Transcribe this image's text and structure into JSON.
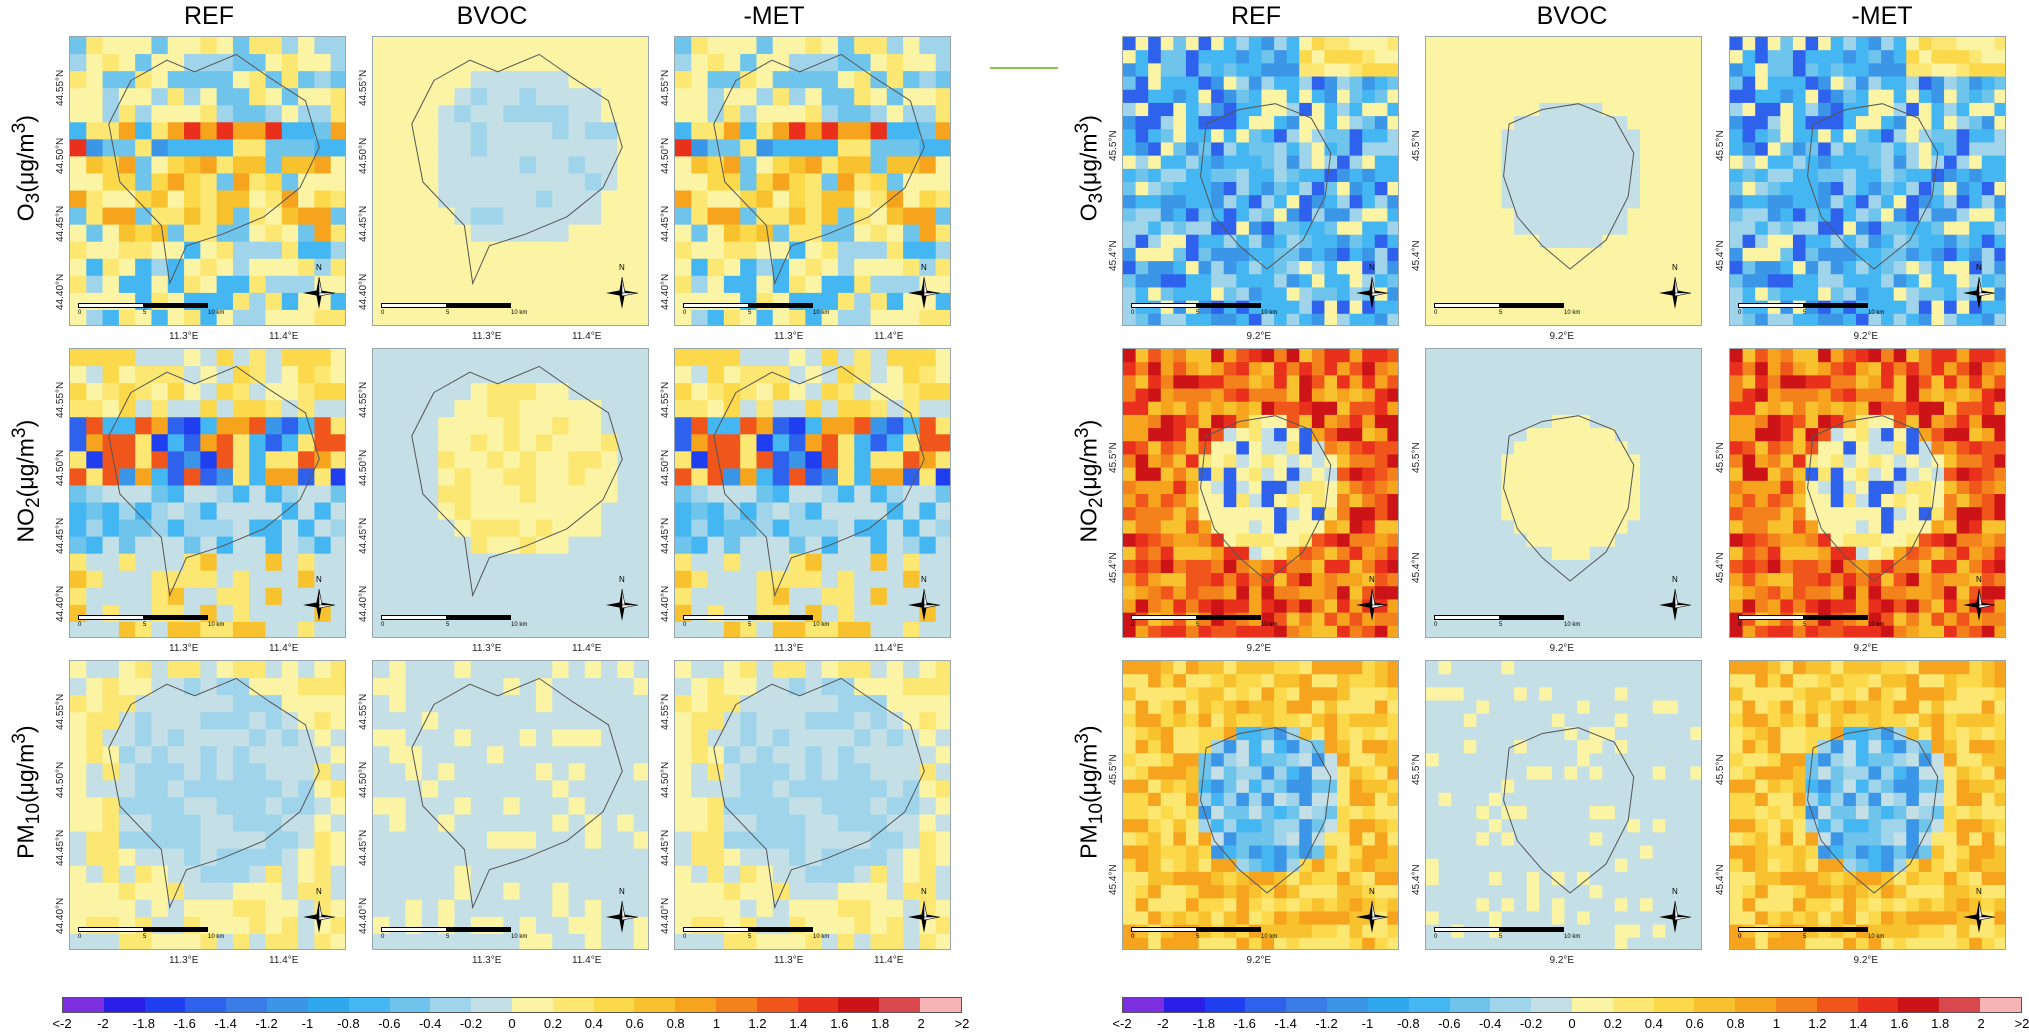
{
  "figure": {
    "left_panel": {
      "column_headers": [
        "REF",
        "BVOC",
        "-MET"
      ],
      "x_ticks": [
        "11.3°E",
        "11.4°E"
      ],
      "y_ticks": [
        "44.55°N",
        "44.50°N",
        "44.45°N",
        "44.40°N"
      ]
    },
    "right_panel": {
      "column_headers": [
        "REF",
        "BVOC",
        "-MET"
      ],
      "x_ticks": [
        "9.2°E"
      ],
      "y_ticks": [
        "45.5°N",
        "45.4°N"
      ]
    },
    "row_labels": [
      {
        "main": "O",
        "sub": "3",
        "rest": "(μg/m",
        "sup": "3",
        "end": ")"
      },
      {
        "main": "NO",
        "sub": "2",
        "rest": "(μg/m",
        "sup": "3",
        "end": ")"
      },
      {
        "main": "PM",
        "sub": "10",
        "rest": "(μg/m",
        "sup": "3",
        "end": ")"
      }
    ],
    "scale_labels": [
      "0",
      "5",
      "10 km"
    ],
    "north_label": "N",
    "legend": {
      "ticks": [
        "<-2",
        "-2",
        "-1.8",
        "-1.6",
        "-1.4",
        "-1.2",
        "-1",
        "-0.8",
        "-0.6",
        "-0.4",
        "-0.2",
        "0",
        "0.2",
        "0.4",
        "0.6",
        "0.8",
        "1",
        "1.2",
        "1.4",
        "1.6",
        "1.8",
        "2",
        ">2"
      ],
      "colors": [
        "#7b2fe0",
        "#2a1fe8",
        "#1f3ef0",
        "#2f62ec",
        "#3a7de6",
        "#3c96e8",
        "#2fa8ee",
        "#44b6f2",
        "#6fc4ec",
        "#a0d4ea",
        "#c4e0e6",
        "#fbf4a4",
        "#fbe772",
        "#fbd94a",
        "#f8c22e",
        "#f6a41e",
        "#f4821c",
        "#f0561c",
        "#e8301c",
        "#cc1418",
        "#d8484c",
        "#f6b4b4"
      ]
    }
  }
}
